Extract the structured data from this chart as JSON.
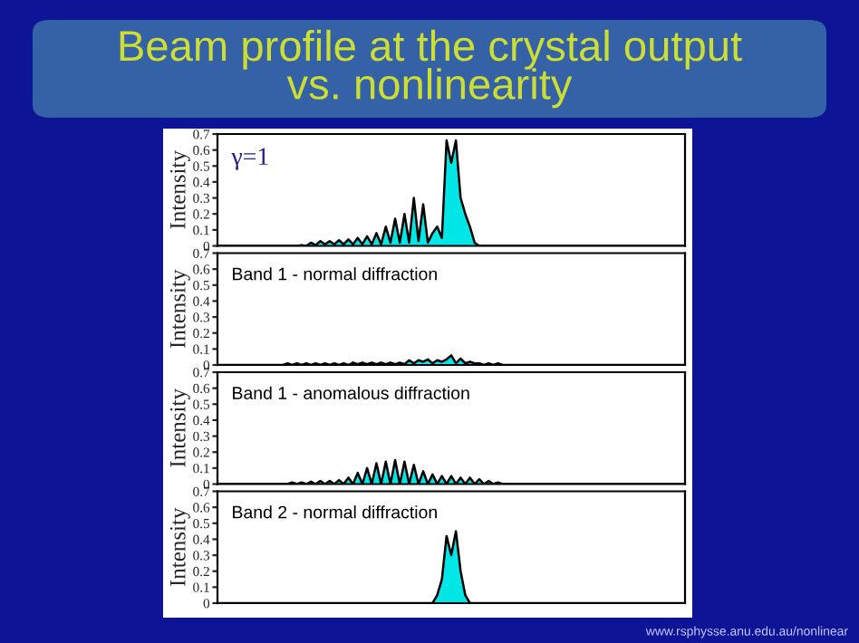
{
  "chart_data": [
    {
      "type": "area",
      "title": "Beam profile at the crystal output vs. nonlinearity",
      "ylabel": "Intensity",
      "annotations": [
        "γ=1"
      ],
      "ylim": [
        0,
        0.7
      ],
      "yticks": [
        0,
        0.1,
        0.2,
        0.3,
        0.4,
        0.5,
        0.6,
        0.7
      ],
      "tick_labels": "y",
      "categories": [
        null,
        null,
        null,
        null,
        null,
        null,
        null,
        null,
        null,
        null,
        null,
        null,
        null,
        null,
        null,
        null,
        null,
        null,
        null,
        null,
        null,
        null,
        null,
        null,
        null,
        null,
        null,
        null,
        null,
        null,
        null,
        null,
        null,
        null,
        null,
        null,
        null,
        null,
        null,
        null,
        null,
        null,
        null,
        null,
        null,
        null,
        null,
        null,
        null,
        null,
        null,
        null,
        null,
        null,
        null,
        null,
        null,
        null,
        null,
        null,
        null,
        null,
        null,
        null,
        null,
        null,
        null,
        null,
        null,
        null,
        null,
        null,
        null,
        null,
        null,
        null,
        null,
        null,
        null,
        null,
        null,
        null,
        null,
        null,
        null,
        null,
        null,
        null,
        null,
        null,
        null,
        null,
        null,
        null,
        null,
        null,
        null,
        null,
        null,
        null,
        null
      ],
      "series": [
        {
          "color": "#00e5e5",
          "values": [
            0,
            0,
            0,
            0,
            0,
            0,
            0,
            0,
            0,
            0,
            0,
            0,
            0,
            0,
            0,
            0,
            0,
            0,
            0.005,
            0,
            0.02,
            0.005,
            0.03,
            0.01,
            0.03,
            0.01,
            0.035,
            0.01,
            0.04,
            0.01,
            0.05,
            0.01,
            0.06,
            0.01,
            0.08,
            0.01,
            0.12,
            0.02,
            0.17,
            0.02,
            0.2,
            0.02,
            0.3,
            0.03,
            0.26,
            0.02,
            0.08,
            0.12,
            0.05,
            0.66,
            0.52,
            0.66,
            0.3,
            0.2,
            0.12,
            0.02,
            0,
            0,
            0,
            0,
            0,
            0,
            0,
            0,
            0,
            0,
            0,
            0,
            0,
            0,
            0,
            0,
            0,
            0,
            0,
            0,
            0,
            0,
            0,
            0,
            0,
            0,
            0,
            0,
            0,
            0,
            0,
            0,
            0,
            0,
            0,
            0,
            0,
            0,
            0,
            0,
            0,
            0,
            0,
            0,
            0
          ]
        }
      ]
    },
    {
      "type": "area",
      "ylabel": "Intensity",
      "annotations": [
        "Band 1 - normal diffraction"
      ],
      "ylim": [
        0,
        0.7
      ],
      "yticks": [
        0,
        0.1,
        0.2,
        0.3,
        0.4,
        0.5,
        0.6,
        0.7
      ],
      "tick_labels": "y",
      "categories": [
        null,
        null,
        null,
        null,
        null,
        null,
        null,
        null,
        null,
        null,
        null,
        null,
        null,
        null,
        null,
        null,
        null,
        null,
        null,
        null,
        null,
        null,
        null,
        null,
        null,
        null,
        null,
        null,
        null,
        null,
        null,
        null,
        null,
        null,
        null,
        null,
        null,
        null,
        null,
        null,
        null,
        null,
        null,
        null,
        null,
        null,
        null,
        null,
        null,
        null,
        null,
        null,
        null,
        null,
        null,
        null,
        null,
        null,
        null,
        null,
        null,
        null,
        null,
        null,
        null,
        null,
        null,
        null,
        null,
        null,
        null,
        null,
        null,
        null,
        null,
        null,
        null,
        null,
        null,
        null,
        null,
        null,
        null,
        null,
        null,
        null,
        null,
        null,
        null,
        null,
        null,
        null,
        null,
        null,
        null,
        null,
        null,
        null,
        null,
        null,
        null
      ],
      "series": [
        {
          "color": "#00e5e5",
          "values": [
            0,
            0,
            0,
            0,
            0,
            0,
            0,
            0,
            0,
            0,
            0,
            0,
            0,
            0,
            0,
            0.01,
            0,
            0.01,
            0,
            0.01,
            0,
            0.01,
            0,
            0.01,
            0,
            0.01,
            0,
            0.01,
            0,
            0.015,
            0.005,
            0.015,
            0.005,
            0.015,
            0.005,
            0.015,
            0.005,
            0.015,
            0.005,
            0.015,
            0.005,
            0.03,
            0.01,
            0.03,
            0.02,
            0.035,
            0.01,
            0.03,
            0.02,
            0.035,
            0.06,
            0.01,
            0.04,
            0.01,
            0.02,
            0.01,
            0.01,
            0,
            0.01,
            0,
            0.01,
            0,
            0,
            0,
            0,
            0,
            0,
            0,
            0,
            0,
            0,
            0,
            0,
            0,
            0,
            0,
            0,
            0,
            0,
            0,
            0,
            0,
            0,
            0,
            0,
            0,
            0,
            0,
            0,
            0,
            0,
            0,
            0,
            0,
            0,
            0,
            0,
            0,
            0,
            0,
            0
          ]
        }
      ]
    },
    {
      "type": "area",
      "ylabel": "Intensity",
      "annotations": [
        "Band 1 - anomalous diffraction"
      ],
      "ylim": [
        0,
        0.7
      ],
      "yticks": [
        0,
        0.1,
        0.2,
        0.3,
        0.4,
        0.5,
        0.6,
        0.7
      ],
      "tick_labels": "y",
      "categories": [
        null,
        null,
        null,
        null,
        null,
        null,
        null,
        null,
        null,
        null,
        null,
        null,
        null,
        null,
        null,
        null,
        null,
        null,
        null,
        null,
        null,
        null,
        null,
        null,
        null,
        null,
        null,
        null,
        null,
        null,
        null,
        null,
        null,
        null,
        null,
        null,
        null,
        null,
        null,
        null,
        null,
        null,
        null,
        null,
        null,
        null,
        null,
        null,
        null,
        null,
        null,
        null,
        null,
        null,
        null,
        null,
        null,
        null,
        null,
        null,
        null,
        null,
        null,
        null,
        null,
        null,
        null,
        null,
        null,
        null,
        null,
        null,
        null,
        null,
        null,
        null,
        null,
        null,
        null,
        null,
        null,
        null,
        null,
        null,
        null,
        null,
        null,
        null,
        null,
        null,
        null,
        null,
        null,
        null,
        null,
        null,
        null,
        null,
        null,
        null,
        null
      ],
      "series": [
        {
          "color": "#00e5e5",
          "values": [
            0,
            0,
            0,
            0,
            0,
            0,
            0,
            0,
            0,
            0,
            0,
            0,
            0,
            0,
            0,
            0,
            0.01,
            0,
            0.01,
            0,
            0.015,
            0,
            0.02,
            0,
            0.02,
            0,
            0.025,
            0,
            0.04,
            0,
            0.07,
            0,
            0.1,
            0,
            0.13,
            0,
            0.14,
            0,
            0.15,
            0,
            0.14,
            0,
            0.12,
            0,
            0.08,
            0,
            0.06,
            0,
            0.05,
            0,
            0.05,
            0,
            0.04,
            0,
            0.04,
            0,
            0.03,
            0,
            0.02,
            0,
            0.01,
            0,
            0,
            0,
            0,
            0,
            0,
            0,
            0,
            0,
            0,
            0,
            0,
            0,
            0,
            0,
            0,
            0,
            0,
            0,
            0,
            0,
            0,
            0,
            0,
            0,
            0,
            0,
            0,
            0,
            0,
            0,
            0,
            0,
            0,
            0,
            0,
            0,
            0,
            0,
            0
          ]
        }
      ]
    },
    {
      "type": "area",
      "ylabel": "Intensity",
      "annotations": [
        "Band 2 - normal diffraction",
        "www.rsphysse.anu.edu.au/nonlinear"
      ],
      "ylim": [
        0,
        0.7
      ],
      "yticks": [
        0,
        0.1,
        0.2,
        0.3,
        0.4,
        0.5,
        0.6,
        0.7
      ],
      "tick_labels": "y",
      "categories": [
        null,
        null,
        null,
        null,
        null,
        null,
        null,
        null,
        null,
        null,
        null,
        null,
        null,
        null,
        null,
        null,
        null,
        null,
        null,
        null,
        null,
        null,
        null,
        null,
        null,
        null,
        null,
        null,
        null,
        null,
        null,
        null,
        null,
        null,
        null,
        null,
        null,
        null,
        null,
        null,
        null,
        null,
        null,
        null,
        null,
        null,
        null,
        null,
        null,
        null,
        null,
        null,
        null,
        null,
        null,
        null,
        null,
        null,
        null,
        null,
        null,
        null,
        null,
        null,
        null,
        null,
        null,
        null,
        null,
        null,
        null,
        null,
        null,
        null,
        null,
        null,
        null,
        null,
        null,
        null,
        null,
        null,
        null,
        null,
        null,
        null,
        null,
        null,
        null,
        null,
        null,
        null,
        null,
        null,
        null,
        null,
        null,
        null,
        null,
        null,
        null
      ],
      "series": [
        {
          "color": "#00e5e5",
          "values": [
            0,
            0,
            0,
            0,
            0,
            0,
            0,
            0,
            0,
            0,
            0,
            0,
            0,
            0,
            0,
            0,
            0,
            0,
            0,
            0,
            0,
            0,
            0,
            0,
            0,
            0,
            0,
            0,
            0,
            0,
            0,
            0,
            0,
            0,
            0,
            0,
            0,
            0,
            0,
            0,
            0,
            0,
            0,
            0,
            0,
            0,
            0,
            0.05,
            0.15,
            0.42,
            0.3,
            0.45,
            0.2,
            0.05,
            0,
            0,
            0,
            0,
            0,
            0,
            0,
            0,
            0,
            0,
            0,
            0,
            0,
            0,
            0,
            0,
            0,
            0,
            0,
            0,
            0,
            0,
            0,
            0,
            0,
            0,
            0,
            0,
            0,
            0,
            0,
            0,
            0,
            0,
            0,
            0,
            0,
            0,
            0,
            0,
            0,
            0,
            0,
            0,
            0,
            0,
            0
          ]
        }
      ]
    }
  ]
}
